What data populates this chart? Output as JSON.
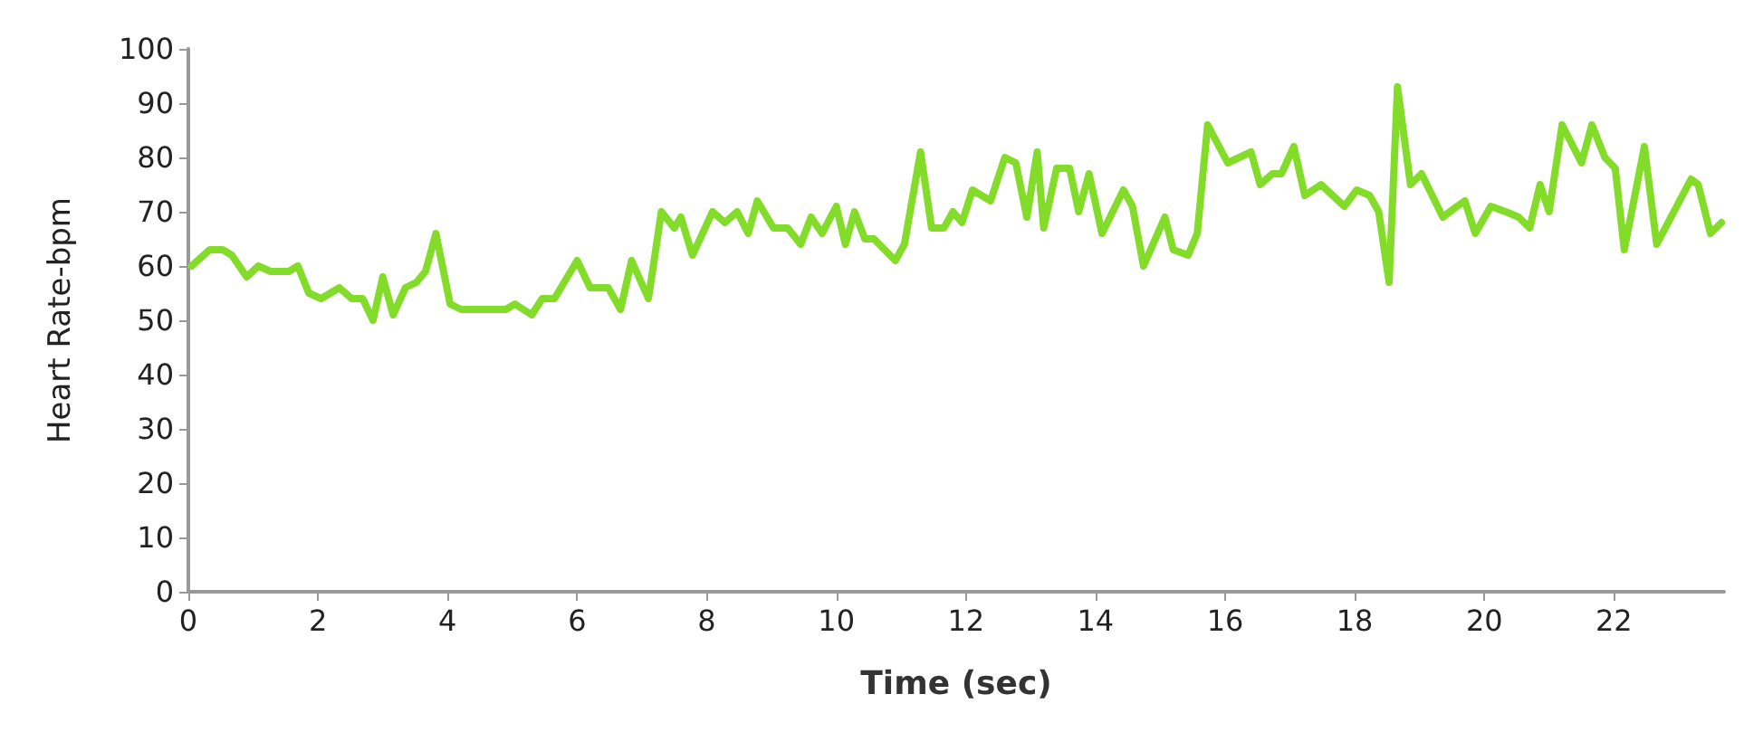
{
  "chart_data": {
    "type": "line",
    "xlabel": "Time (sec)",
    "ylabel": "Heart Rate-bpm",
    "xlim": [
      0,
      23.7
    ],
    "xticks": [
      0,
      2,
      4,
      6,
      8,
      10,
      12,
      14,
      16,
      18,
      20,
      22
    ],
    "ylim": [
      0,
      100
    ],
    "yticks": [
      0,
      10,
      20,
      30,
      40,
      50,
      60,
      70,
      80,
      90,
      100
    ],
    "grid": false,
    "marker": "none",
    "line_style": "solid",
    "series": [
      {
        "color": "#84dc2a",
        "x": [
          0.05,
          0.33,
          0.53,
          0.67,
          0.9,
          1.08,
          1.27,
          1.55,
          1.69,
          1.86,
          2.05,
          2.33,
          2.52,
          2.69,
          2.85,
          3.0,
          3.16,
          3.35,
          3.52,
          3.66,
          3.82,
          4.04,
          4.21,
          4.9,
          5.04,
          5.3,
          5.46,
          5.65,
          5.85,
          6.0,
          6.2,
          6.48,
          6.67,
          6.84,
          7.1,
          7.3,
          7.5,
          7.6,
          7.78,
          8.09,
          8.28,
          8.47,
          8.64,
          8.78,
          9.03,
          9.25,
          9.45,
          9.61,
          9.78,
          10.0,
          10.14,
          10.28,
          10.44,
          10.58,
          10.91,
          11.05,
          11.3,
          11.47,
          11.66,
          11.8,
          11.94,
          12.1,
          12.38,
          12.6,
          12.77,
          12.94,
          13.1,
          13.2,
          13.4,
          13.6,
          13.74,
          13.9,
          14.1,
          14.43,
          14.57,
          14.74,
          15.07,
          15.2,
          15.43,
          15.57,
          15.73,
          16.04,
          16.4,
          16.54,
          16.73,
          16.87,
          17.06,
          17.23,
          17.48,
          17.84,
          18.03,
          18.23,
          18.37,
          18.53,
          18.66,
          18.86,
          19.03,
          19.36,
          19.58,
          19.7,
          19.86,
          20.1,
          20.33,
          20.53,
          20.7,
          20.86,
          21.0,
          21.2,
          21.5,
          21.66,
          21.86,
          22.02,
          22.16,
          22.47,
          22.66,
          23.19,
          23.3,
          23.49,
          23.66
        ],
        "values": [
          60,
          63,
          63,
          62,
          58,
          60,
          59,
          59,
          60,
          55,
          54,
          56,
          54,
          54,
          50,
          58,
          51,
          56,
          57,
          59,
          66,
          53,
          52,
          52,
          53,
          51,
          54,
          54,
          58,
          61,
          56,
          56,
          52,
          61,
          54,
          70,
          67,
          69,
          62,
          70,
          68,
          70,
          66,
          72,
          67,
          67,
          64,
          69,
          66,
          71,
          64,
          70,
          65,
          65,
          61,
          64,
          81,
          67,
          67,
          70,
          68,
          74,
          72,
          80,
          79,
          69,
          81,
          67,
          78,
          78,
          70,
          77,
          66,
          74,
          71,
          60,
          69,
          63,
          62,
          66,
          86,
          79,
          81,
          75,
          77,
          77,
          82,
          73,
          75,
          71,
          74,
          73,
          70,
          57,
          93,
          75,
          77,
          69,
          71,
          72,
          66,
          71,
          70,
          69,
          67,
          75,
          70,
          86,
          79,
          86,
          80,
          78,
          63,
          82,
          64,
          76,
          75,
          66,
          68
        ]
      }
    ]
  }
}
